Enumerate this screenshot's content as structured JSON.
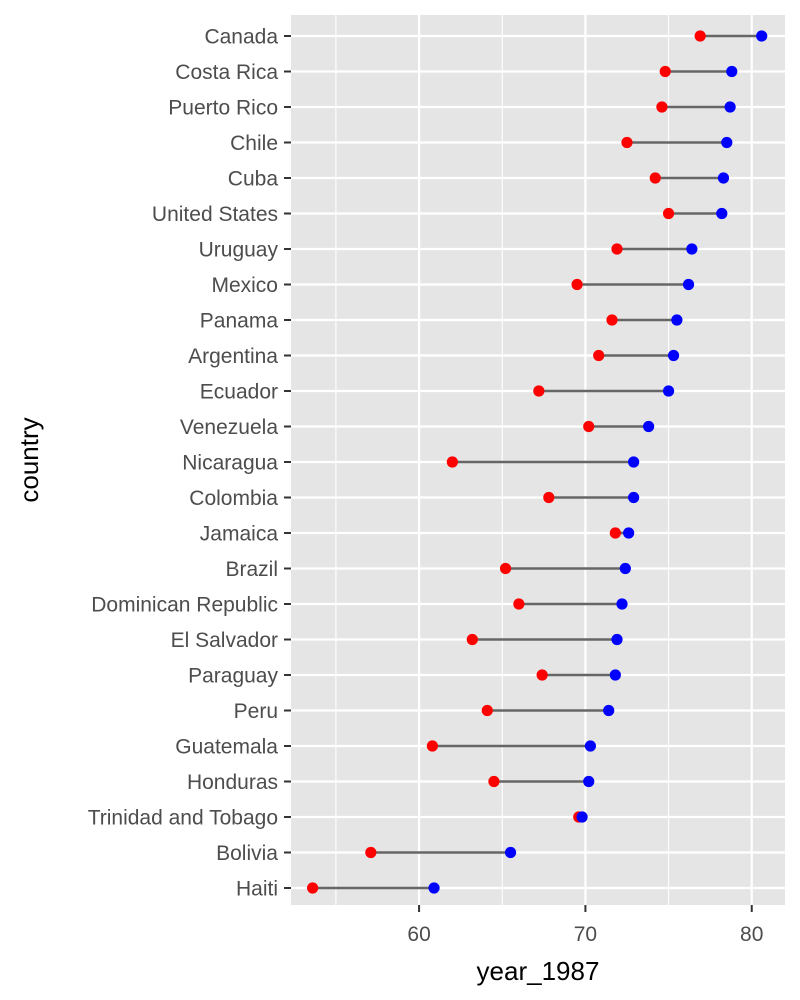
{
  "chart_data": {
    "type": "dumbbell",
    "xlabel": "year_1987",
    "ylabel": "country",
    "xlim": [
      52.3,
      82.0
    ],
    "xticks": [
      60,
      70,
      80
    ],
    "x_minor_ticks": [
      55,
      65,
      75
    ],
    "grid": true,
    "colors": {
      "start_point": "#ff0000",
      "end_point": "#0000ff",
      "segment": "#666666",
      "panel": "#e5e5e5",
      "grid": "#ffffff"
    },
    "categories": [
      "Canada",
      "Costa Rica",
      "Puerto Rico",
      "Chile",
      "Cuba",
      "United States",
      "Uruguay",
      "Mexico",
      "Panama",
      "Argentina",
      "Ecuador",
      "Venezuela",
      "Nicaragua",
      "Colombia",
      "Jamaica",
      "Brazil",
      "Dominican Republic",
      "El Salvador",
      "Paraguay",
      "Peru",
      "Guatemala",
      "Honduras",
      "Trinidad and Tobago",
      "Bolivia",
      "Haiti"
    ],
    "start_values": [
      76.9,
      74.8,
      74.6,
      72.5,
      74.2,
      75.0,
      71.9,
      69.5,
      71.6,
      70.8,
      67.2,
      70.2,
      62.0,
      67.8,
      71.8,
      65.2,
      66.0,
      63.2,
      67.4,
      64.1,
      60.8,
      64.5,
      69.6,
      57.1,
      53.6
    ],
    "end_values": [
      80.6,
      78.8,
      78.7,
      78.5,
      78.3,
      78.2,
      76.4,
      76.2,
      75.5,
      75.3,
      75.0,
      73.8,
      72.9,
      72.9,
      72.6,
      72.4,
      72.2,
      71.9,
      71.8,
      71.4,
      70.3,
      70.2,
      69.8,
      65.5,
      60.9
    ]
  }
}
